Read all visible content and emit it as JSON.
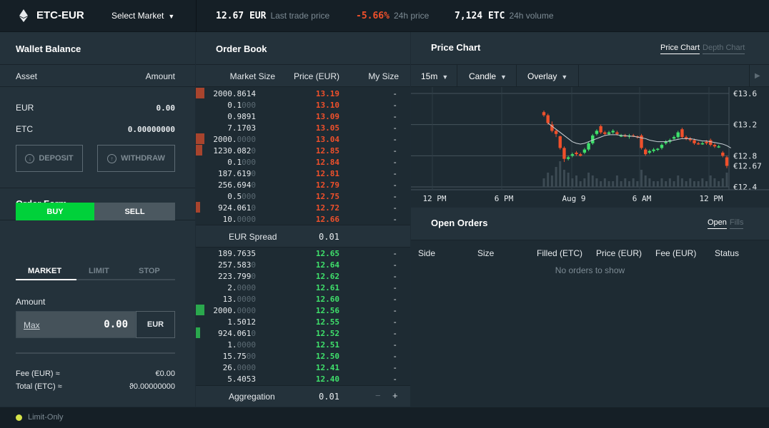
{
  "header": {
    "pair": "ETC-EUR",
    "select_market": "Select Market",
    "last_trade_price": "12.67 EUR",
    "last_trade_label": "Last trade price",
    "change_24h": "-5.66%",
    "change_24h_label": "24h price",
    "volume_24h": "7,124 ETC",
    "volume_24h_label": "24h volume",
    "change_color": "#f0502b"
  },
  "wallet": {
    "title": "Wallet Balance",
    "col_asset": "Asset",
    "col_amount": "Amount",
    "rows": [
      {
        "asset": "EUR",
        "amount": "0.00"
      },
      {
        "asset": "ETC",
        "amount": "0.00000000"
      }
    ],
    "deposit_label": "DEPOSIT",
    "withdraw_label": "WITHDRAW"
  },
  "order_form": {
    "title": "Order Form",
    "buy_label": "BUY",
    "sell_label": "SELL",
    "tabs": [
      "MARKET",
      "LIMIT",
      "STOP"
    ],
    "active_tab": "MARKET",
    "amount_label": "Amount",
    "max_label": "Max",
    "amount_value": "0.00",
    "amount_currency": "EUR",
    "fee_label": "Fee (EUR) ≈",
    "fee_value": "€0.00",
    "total_label": "Total (ETC) ≈",
    "total_value": "ϑ0.00000000",
    "buy_color": "#00d13a"
  },
  "order_book": {
    "title": "Order Book",
    "col_size": "Market Size",
    "col_price": "Price (EUR)",
    "col_mine": "My Size",
    "asks": [
      {
        "size": "2000.8614",
        "sig": "2000.8614",
        "pad": "",
        "price": "13.19",
        "my": "-",
        "depth": 0.4
      },
      {
        "size": "0.1000",
        "sig": "0.1",
        "pad": "000",
        "price": "13.10",
        "my": "-",
        "depth": 0
      },
      {
        "size": "0.9891",
        "sig": "0.9891",
        "pad": "",
        "price": "13.09",
        "my": "-",
        "depth": 0
      },
      {
        "size": "7.1703",
        "sig": "7.1703",
        "pad": "",
        "price": "13.05",
        "my": "-",
        "depth": 0
      },
      {
        "size": "2000.0000",
        "sig": "2000.",
        "pad": "0000",
        "price": "13.04",
        "my": "-",
        "depth": 0.4
      },
      {
        "size": "1230.0820",
        "sig": "1230.082",
        "pad": "0",
        "price": "12.85",
        "my": "-",
        "depth": 0.3
      },
      {
        "size": "0.1000",
        "sig": "0.1",
        "pad": "000",
        "price": "12.84",
        "my": "-",
        "depth": 0
      },
      {
        "size": "187.6190",
        "sig": "187.619",
        "pad": "0",
        "price": "12.81",
        "my": "-",
        "depth": 0
      },
      {
        "size": "256.6940",
        "sig": "256.694",
        "pad": "0",
        "price": "12.79",
        "my": "-",
        "depth": 0
      },
      {
        "size": "0.5000",
        "sig": "0.5",
        "pad": "000",
        "price": "12.75",
        "my": "-",
        "depth": 0
      },
      {
        "size": "924.0610",
        "sig": "924.061",
        "pad": "0",
        "price": "12.72",
        "my": "-",
        "depth": 0.2
      },
      {
        "size": "10.0000",
        "sig": "10.",
        "pad": "0000",
        "price": "12.66",
        "my": "-",
        "depth": 0
      }
    ],
    "spread_label": "EUR Spread",
    "spread_value": "0.01",
    "bids": [
      {
        "size": "189.7635",
        "sig": "189.7635",
        "pad": "",
        "price": "12.65",
        "my": "-",
        "depth": 0
      },
      {
        "size": "257.5830",
        "sig": "257.583",
        "pad": "0",
        "price": "12.64",
        "my": "-",
        "depth": 0
      },
      {
        "size": "223.7990",
        "sig": "223.799",
        "pad": "0",
        "price": "12.62",
        "my": "-",
        "depth": 0
      },
      {
        "size": "2.0000",
        "sig": "2.",
        "pad": "0000",
        "price": "12.61",
        "my": "-",
        "depth": 0
      },
      {
        "size": "13.0000",
        "sig": "13.",
        "pad": "0000",
        "price": "12.60",
        "my": "-",
        "depth": 0
      },
      {
        "size": "2000.0000",
        "sig": "2000.",
        "pad": "0000",
        "price": "12.56",
        "my": "-",
        "depth": 0.4
      },
      {
        "size": "1.5012",
        "sig": "1.5012",
        "pad": "",
        "price": "12.55",
        "my": "-",
        "depth": 0
      },
      {
        "size": "924.0610",
        "sig": "924.061",
        "pad": "0",
        "price": "12.52",
        "my": "-",
        "depth": 0.2
      },
      {
        "size": "1.0000",
        "sig": "1.",
        "pad": "0000",
        "price": "12.51",
        "my": "-",
        "depth": 0
      },
      {
        "size": "15.7500",
        "sig": "15.75",
        "pad": "00",
        "price": "12.50",
        "my": "-",
        "depth": 0
      },
      {
        "size": "26.0000",
        "sig": "26.",
        "pad": "0000",
        "price": "12.41",
        "my": "-",
        "depth": 0
      },
      {
        "size": "5.4053",
        "sig": "5.4053",
        "pad": "",
        "price": "12.40",
        "my": "-",
        "depth": 0
      }
    ],
    "aggregation_label": "Aggregation",
    "aggregation_value": "0.01",
    "minus": "−",
    "plus": "+"
  },
  "price_chart": {
    "title": "Price Chart",
    "tab_price": "Price Chart",
    "tab_depth": "Depth Chart",
    "interval": "15m",
    "chart_style": "Candle",
    "overlay": "Overlay",
    "play": "▶",
    "y_ticks": [
      "€13.6",
      "€13.2",
      "€12.8",
      "€12.4"
    ],
    "y_values": [
      13.6,
      13.2,
      12.8,
      12.4
    ],
    "current_price_label": "€12.67",
    "current_price": 12.67,
    "x_ticks": [
      "12 PM",
      "6 PM",
      "Aug 9",
      "6 AM",
      "12 PM"
    ]
  },
  "chart_data": {
    "type": "candlestick",
    "ylim": [
      12.4,
      13.6
    ],
    "up_color": "#3fe06b",
    "down_color": "#f0502b",
    "candles": [
      {
        "o": 13.36,
        "h": 13.38,
        "l": 13.3,
        "c": 13.32
      },
      {
        "o": 13.32,
        "h": 13.34,
        "l": 13.2,
        "c": 13.22
      },
      {
        "o": 13.2,
        "h": 13.24,
        "l": 13.1,
        "c": 13.12
      },
      {
        "o": 13.12,
        "h": 13.14,
        "l": 13.04,
        "c": 13.08
      },
      {
        "o": 13.05,
        "h": 13.06,
        "l": 12.88,
        "c": 12.9
      },
      {
        "o": 12.9,
        "h": 12.92,
        "l": 12.72,
        "c": 12.76
      },
      {
        "o": 12.76,
        "h": 12.8,
        "l": 12.74,
        "c": 12.78
      },
      {
        "o": 12.8,
        "h": 12.84,
        "l": 12.78,
        "c": 12.82
      },
      {
        "o": 12.84,
        "h": 12.86,
        "l": 12.8,
        "c": 12.82
      },
      {
        "o": 12.82,
        "h": 12.84,
        "l": 12.79,
        "c": 12.8
      },
      {
        "o": 12.84,
        "h": 12.9,
        "l": 12.82,
        "c": 12.88
      },
      {
        "o": 12.88,
        "h": 12.98,
        "l": 12.86,
        "c": 12.96
      },
      {
        "o": 12.96,
        "h": 13.08,
        "l": 12.94,
        "c": 13.06
      },
      {
        "o": 13.08,
        "h": 13.14,
        "l": 13.06,
        "c": 13.12
      },
      {
        "o": 13.18,
        "h": 13.2,
        "l": 13.08,
        "c": 13.1
      },
      {
        "o": 13.1,
        "h": 13.12,
        "l": 13.06,
        "c": 13.08
      },
      {
        "o": 13.08,
        "h": 13.12,
        "l": 13.06,
        "c": 13.1
      },
      {
        "o": 13.1,
        "h": 13.14,
        "l": 13.08,
        "c": 13.12
      },
      {
        "o": 13.1,
        "h": 13.12,
        "l": 13.06,
        "c": 13.08
      },
      {
        "o": 13.06,
        "h": 13.08,
        "l": 13.04,
        "c": 13.06
      },
      {
        "o": 13.06,
        "h": 13.08,
        "l": 13.04,
        "c": 13.05
      },
      {
        "o": 13.05,
        "h": 13.08,
        "l": 13.02,
        "c": 13.06
      },
      {
        "o": 13.06,
        "h": 13.08,
        "l": 13.04,
        "c": 13.05
      },
      {
        "o": 13.05,
        "h": 13.06,
        "l": 13.02,
        "c": 13.04
      },
      {
        "o": 13.06,
        "h": 13.08,
        "l": 12.88,
        "c": 12.9
      },
      {
        "o": 12.88,
        "h": 12.9,
        "l": 12.8,
        "c": 12.82
      },
      {
        "o": 12.84,
        "h": 12.88,
        "l": 12.82,
        "c": 12.86
      },
      {
        "o": 12.86,
        "h": 12.9,
        "l": 12.84,
        "c": 12.88
      },
      {
        "o": 12.88,
        "h": 12.9,
        "l": 12.86,
        "c": 12.89
      },
      {
        "o": 12.9,
        "h": 12.96,
        "l": 12.88,
        "c": 12.94
      },
      {
        "o": 12.96,
        "h": 13.0,
        "l": 12.94,
        "c": 12.98
      },
      {
        "o": 12.98,
        "h": 13.02,
        "l": 12.96,
        "c": 13.0
      },
      {
        "o": 13.02,
        "h": 13.06,
        "l": 13.0,
        "c": 13.04
      },
      {
        "o": 13.04,
        "h": 13.12,
        "l": 13.02,
        "c": 13.1
      },
      {
        "o": 13.14,
        "h": 13.16,
        "l": 13.02,
        "c": 13.04
      },
      {
        "o": 13.04,
        "h": 13.06,
        "l": 13.0,
        "c": 13.02
      },
      {
        "o": 13.02,
        "h": 13.04,
        "l": 12.98,
        "c": 13.0
      },
      {
        "o": 13.0,
        "h": 13.02,
        "l": 12.94,
        "c": 12.96
      },
      {
        "o": 12.96,
        "h": 12.98,
        "l": 12.94,
        "c": 12.95
      },
      {
        "o": 12.96,
        "h": 12.98,
        "l": 12.94,
        "c": 12.96
      },
      {
        "o": 12.98,
        "h": 13.0,
        "l": 12.94,
        "c": 12.96
      },
      {
        "o": 13.0,
        "h": 13.02,
        "l": 12.92,
        "c": 12.94
      },
      {
        "o": 12.94,
        "h": 12.96,
        "l": 12.9,
        "c": 12.92
      },
      {
        "o": 12.92,
        "h": 12.94,
        "l": 12.9,
        "c": 12.92
      },
      {
        "o": 12.84,
        "h": 12.86,
        "l": 12.78,
        "c": 12.8
      },
      {
        "o": 12.78,
        "h": 12.8,
        "l": 12.64,
        "c": 12.67
      }
    ],
    "moving_average": [
      13.22,
      13.18,
      13.14,
      13.1,
      13.06,
      13.02,
      12.98,
      12.96,
      12.95,
      12.96,
      12.98,
      13.0,
      13.02,
      13.04,
      13.06,
      13.07,
      13.07,
      13.07,
      13.06,
      13.06,
      13.05,
      13.05,
      13.04,
      13.03,
      13.02,
      13.0,
      12.99,
      12.98,
      12.98,
      12.98,
      12.99,
      13.0,
      13.01,
      13.02,
      13.02,
      13.02,
      13.01,
      13.0,
      12.99,
      12.99,
      12.98,
      12.97,
      12.96,
      12.95,
      12.93,
      12.9
    ],
    "volume": [
      0.3,
      0.5,
      0.4,
      0.7,
      0.9,
      0.6,
      0.5,
      0.3,
      0.4,
      0.2,
      0.3,
      0.5,
      0.4,
      0.3,
      0.2,
      0.3,
      0.2,
      0.2,
      0.4,
      0.2,
      0.3,
      0.2,
      0.3,
      0.2,
      0.6,
      0.4,
      0.3,
      0.2,
      0.2,
      0.3,
      0.2,
      0.3,
      0.2,
      0.4,
      0.3,
      0.2,
      0.3,
      0.2,
      0.2,
      0.3,
      0.2,
      0.4,
      0.3,
      0.2,
      0.3,
      0.5
    ]
  },
  "open_orders": {
    "title": "Open Orders",
    "tab_open": "Open",
    "tab_fills": "Fills",
    "columns": [
      "Side",
      "Size",
      "Filled (ETC)",
      "Price (EUR)",
      "Fee (EUR)",
      "Status"
    ],
    "empty_text": "No orders to show"
  },
  "footer": {
    "limit_only": "Limit-Only",
    "status_color": "#d6e34a"
  }
}
